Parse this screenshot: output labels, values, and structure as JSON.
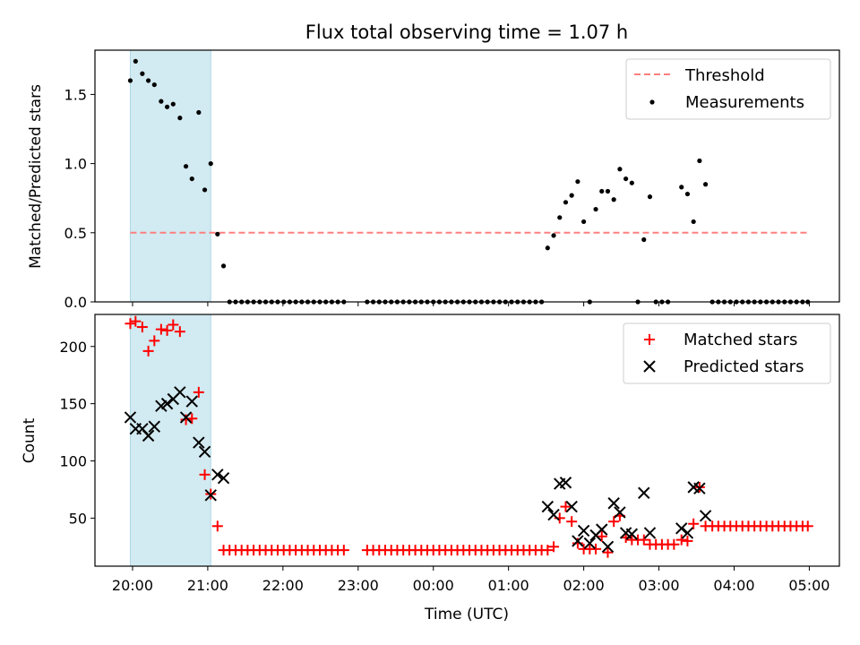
{
  "figure": {
    "title": "Flux total observing time = 1.07 h",
    "xlabel": "Time (UTC)",
    "x_tick_labels": [
      "20:00",
      "21:00",
      "22:00",
      "23:00",
      "00:00",
      "01:00",
      "02:00",
      "03:00",
      "04:00",
      "05:00"
    ]
  },
  "chart_data": [
    {
      "type": "scatter",
      "title": "Flux total observing time = 1.07 h",
      "ylabel": "Matched/Predicted stars",
      "xlabel": "",
      "x_unit": "hours since 20:00 UTC",
      "xlim": [
        -0.5,
        9.4
      ],
      "ylim": [
        0.0,
        1.82
      ],
      "y_ticks": [
        0.0,
        0.5,
        1.0,
        1.5
      ],
      "y_tick_labels": [
        "0.0",
        "0.5",
        "1.0",
        "1.5"
      ],
      "shaded_span": {
        "x0": -0.03,
        "x1": 1.04,
        "color": "#add8e6"
      },
      "threshold": {
        "name": "Threshold",
        "y": 0.5,
        "x0": -0.03,
        "x1": 8.98,
        "color": "#ff7f7f"
      },
      "legend": {
        "position": "upper right",
        "entries": [
          "Threshold",
          "Measurements"
        ]
      },
      "series": [
        {
          "name": "Measurements",
          "marker": "dot",
          "color": "#000000",
          "points": [
            [
              -0.03,
              1.6
            ],
            [
              0.04,
              1.74
            ],
            [
              0.13,
              1.65
            ],
            [
              0.21,
              1.6
            ],
            [
              0.29,
              1.57
            ],
            [
              0.38,
              1.45
            ],
            [
              0.46,
              1.41
            ],
            [
              0.54,
              1.43
            ],
            [
              0.63,
              1.33
            ],
            [
              0.71,
              0.98
            ],
            [
              0.79,
              0.89
            ],
            [
              0.88,
              1.37
            ],
            [
              0.96,
              0.81
            ],
            [
              1.04,
              1.0
            ],
            [
              1.13,
              0.49
            ],
            [
              1.21,
              0.26
            ],
            [
              1.29,
              0
            ],
            [
              1.37,
              0
            ],
            [
              1.45,
              0
            ],
            [
              1.53,
              0
            ],
            [
              1.61,
              0
            ],
            [
              1.69,
              0
            ],
            [
              1.77,
              0
            ],
            [
              1.85,
              0
            ],
            [
              1.93,
              0
            ],
            [
              2.01,
              0
            ],
            [
              2.09,
              0
            ],
            [
              2.17,
              0
            ],
            [
              2.25,
              0
            ],
            [
              2.33,
              0
            ],
            [
              2.41,
              0
            ],
            [
              2.49,
              0
            ],
            [
              2.57,
              0
            ],
            [
              2.65,
              0
            ],
            [
              2.73,
              0
            ],
            [
              2.81,
              0
            ],
            [
              3.12,
              0
            ],
            [
              3.2,
              0
            ],
            [
              3.28,
              0
            ],
            [
              3.36,
              0
            ],
            [
              3.44,
              0
            ],
            [
              3.52,
              0
            ],
            [
              3.6,
              0
            ],
            [
              3.68,
              0
            ],
            [
              3.76,
              0
            ],
            [
              3.84,
              0
            ],
            [
              3.92,
              0
            ],
            [
              4.0,
              0
            ],
            [
              4.08,
              0
            ],
            [
              4.16,
              0
            ],
            [
              4.24,
              0
            ],
            [
              4.32,
              0
            ],
            [
              4.4,
              0
            ],
            [
              4.48,
              0
            ],
            [
              4.56,
              0
            ],
            [
              4.64,
              0
            ],
            [
              4.72,
              0
            ],
            [
              4.8,
              0
            ],
            [
              4.88,
              0
            ],
            [
              4.96,
              0
            ],
            [
              5.04,
              0
            ],
            [
              5.12,
              0
            ],
            [
              5.2,
              0
            ],
            [
              5.28,
              0
            ],
            [
              5.36,
              0
            ],
            [
              5.44,
              0
            ],
            [
              5.52,
              0.39
            ],
            [
              5.6,
              0.48
            ],
            [
              5.68,
              0.61
            ],
            [
              5.76,
              0.72
            ],
            [
              5.84,
              0.77
            ],
            [
              5.92,
              0.87
            ],
            [
              6.0,
              0.58
            ],
            [
              6.08,
              0
            ],
            [
              6.16,
              0.67
            ],
            [
              6.24,
              0.8
            ],
            [
              6.32,
              0.8
            ],
            [
              6.4,
              0.74
            ],
            [
              6.48,
              0.96
            ],
            [
              6.56,
              0.89
            ],
            [
              6.64,
              0.86
            ],
            [
              6.72,
              0
            ],
            [
              6.8,
              0.45
            ],
            [
              6.88,
              0.76
            ],
            [
              6.96,
              0
            ],
            [
              7.04,
              0
            ],
            [
              7.12,
              0
            ],
            [
              7.3,
              0.83
            ],
            [
              7.38,
              0.78
            ],
            [
              7.46,
              0.58
            ],
            [
              7.54,
              1.02
            ],
            [
              7.62,
              0.85
            ],
            [
              7.71,
              0
            ],
            [
              7.79,
              0
            ],
            [
              7.87,
              0
            ],
            [
              7.95,
              0
            ],
            [
              8.03,
              0
            ],
            [
              8.11,
              0
            ],
            [
              8.19,
              0
            ],
            [
              8.27,
              0
            ],
            [
              8.35,
              0
            ],
            [
              8.43,
              0
            ],
            [
              8.51,
              0
            ],
            [
              8.59,
              0
            ],
            [
              8.67,
              0
            ],
            [
              8.75,
              0
            ],
            [
              8.83,
              0
            ],
            [
              8.91,
              0
            ],
            [
              8.98,
              0
            ]
          ]
        }
      ]
    },
    {
      "type": "scatter",
      "title": "",
      "ylabel": "Count",
      "xlabel": "Time (UTC)",
      "x_unit": "hours since 20:00 UTC",
      "xlim": [
        -0.5,
        9.4
      ],
      "ylim": [
        8,
        228
      ],
      "y_ticks": [
        50,
        100,
        150,
        200
      ],
      "y_tick_labels": [
        "50",
        "100",
        "150",
        "200"
      ],
      "shaded_span": {
        "x0": -0.03,
        "x1": 1.04,
        "color": "#add8e6"
      },
      "legend": {
        "position": "upper right",
        "entries": [
          "Matched stars",
          "Predicted stars"
        ]
      },
      "series": [
        {
          "name": "Matched stars",
          "marker": "plus",
          "color": "#ff0000",
          "points": [
            [
              -0.03,
              220
            ],
            [
              0.04,
              222
            ],
            [
              0.13,
              217
            ],
            [
              0.21,
              196
            ],
            [
              0.29,
              205
            ],
            [
              0.38,
              215
            ],
            [
              0.46,
              214
            ],
            [
              0.54,
              219
            ],
            [
              0.63,
              213
            ],
            [
              0.71,
              136
            ],
            [
              0.79,
              137
            ],
            [
              0.88,
              160
            ],
            [
              0.96,
              88
            ],
            [
              1.04,
              71
            ],
            [
              1.13,
              43
            ],
            [
              1.21,
              22
            ],
            [
              1.29,
              22
            ],
            [
              1.37,
              22
            ],
            [
              1.45,
              22
            ],
            [
              1.53,
              22
            ],
            [
              1.61,
              22
            ],
            [
              1.69,
              22
            ],
            [
              1.77,
              22
            ],
            [
              1.85,
              22
            ],
            [
              1.93,
              22
            ],
            [
              2.01,
              22
            ],
            [
              2.09,
              22
            ],
            [
              2.17,
              22
            ],
            [
              2.25,
              22
            ],
            [
              2.33,
              22
            ],
            [
              2.41,
              22
            ],
            [
              2.49,
              22
            ],
            [
              2.57,
              22
            ],
            [
              2.65,
              22
            ],
            [
              2.73,
              22
            ],
            [
              2.81,
              22
            ],
            [
              3.12,
              22
            ],
            [
              3.2,
              22
            ],
            [
              3.28,
              22
            ],
            [
              3.36,
              22
            ],
            [
              3.44,
              22
            ],
            [
              3.52,
              22
            ],
            [
              3.6,
              22
            ],
            [
              3.68,
              22
            ],
            [
              3.76,
              22
            ],
            [
              3.84,
              22
            ],
            [
              3.92,
              22
            ],
            [
              4.0,
              22
            ],
            [
              4.08,
              22
            ],
            [
              4.16,
              22
            ],
            [
              4.24,
              22
            ],
            [
              4.32,
              22
            ],
            [
              4.4,
              22
            ],
            [
              4.48,
              22
            ],
            [
              4.56,
              22
            ],
            [
              4.64,
              22
            ],
            [
              4.72,
              22
            ],
            [
              4.8,
              22
            ],
            [
              4.88,
              22
            ],
            [
              4.96,
              22
            ],
            [
              5.04,
              22
            ],
            [
              5.12,
              22
            ],
            [
              5.2,
              22
            ],
            [
              5.28,
              22
            ],
            [
              5.36,
              22
            ],
            [
              5.44,
              22
            ],
            [
              5.52,
              22
            ],
            [
              5.6,
              25
            ],
            [
              5.68,
              50
            ],
            [
              5.76,
              60
            ],
            [
              5.84,
              47
            ],
            [
              5.92,
              28
            ],
            [
              6.0,
              23
            ],
            [
              6.08,
              23
            ],
            [
              6.16,
              23
            ],
            [
              6.24,
              34
            ],
            [
              6.32,
              20
            ],
            [
              6.4,
              47
            ],
            [
              6.48,
              52
            ],
            [
              6.56,
              33
            ],
            [
              6.64,
              31
            ],
            [
              6.72,
              31
            ],
            [
              6.8,
              31
            ],
            [
              6.88,
              27
            ],
            [
              6.96,
              27
            ],
            [
              7.04,
              27
            ],
            [
              7.12,
              27
            ],
            [
              7.2,
              27
            ],
            [
              7.3,
              31
            ],
            [
              7.38,
              30
            ],
            [
              7.46,
              45
            ],
            [
              7.54,
              77
            ],
            [
              7.62,
              43
            ],
            [
              7.71,
              43
            ],
            [
              7.79,
              43
            ],
            [
              7.87,
              43
            ],
            [
              7.95,
              43
            ],
            [
              8.03,
              43
            ],
            [
              8.11,
              43
            ],
            [
              8.19,
              43
            ],
            [
              8.27,
              43
            ],
            [
              8.35,
              43
            ],
            [
              8.43,
              43
            ],
            [
              8.51,
              43
            ],
            [
              8.59,
              43
            ],
            [
              8.67,
              43
            ],
            [
              8.75,
              43
            ],
            [
              8.83,
              43
            ],
            [
              8.91,
              43
            ],
            [
              8.98,
              43
            ]
          ]
        },
        {
          "name": "Predicted stars",
          "marker": "x",
          "color": "#000000",
          "points": [
            [
              -0.03,
              138
            ],
            [
              0.04,
              128
            ],
            [
              0.13,
              128
            ],
            [
              0.21,
              122
            ],
            [
              0.29,
              130
            ],
            [
              0.38,
              148
            ],
            [
              0.46,
              150
            ],
            [
              0.54,
              154
            ],
            [
              0.63,
              160
            ],
            [
              0.71,
              138
            ],
            [
              0.79,
              152
            ],
            [
              0.88,
              116
            ],
            [
              0.96,
              108
            ],
            [
              1.04,
              70
            ],
            [
              1.13,
              88
            ],
            [
              1.21,
              85
            ],
            [
              5.52,
              60
            ],
            [
              5.6,
              53
            ],
            [
              5.68,
              80
            ],
            [
              5.76,
              81
            ],
            [
              5.84,
              60
            ],
            [
              5.92,
              30
            ],
            [
              6.0,
              39
            ],
            [
              6.08,
              28
            ],
            [
              6.16,
              35
            ],
            [
              6.24,
              40
            ],
            [
              6.32,
              25
            ],
            [
              6.4,
              63
            ],
            [
              6.48,
              55
            ],
            [
              6.56,
              37
            ],
            [
              6.64,
              36
            ],
            [
              6.8,
              72
            ],
            [
              6.88,
              37
            ],
            [
              7.3,
              41
            ],
            [
              7.38,
              37
            ],
            [
              7.46,
              77
            ],
            [
              7.54,
              76
            ],
            [
              7.62,
              52
            ]
          ]
        }
      ]
    }
  ]
}
